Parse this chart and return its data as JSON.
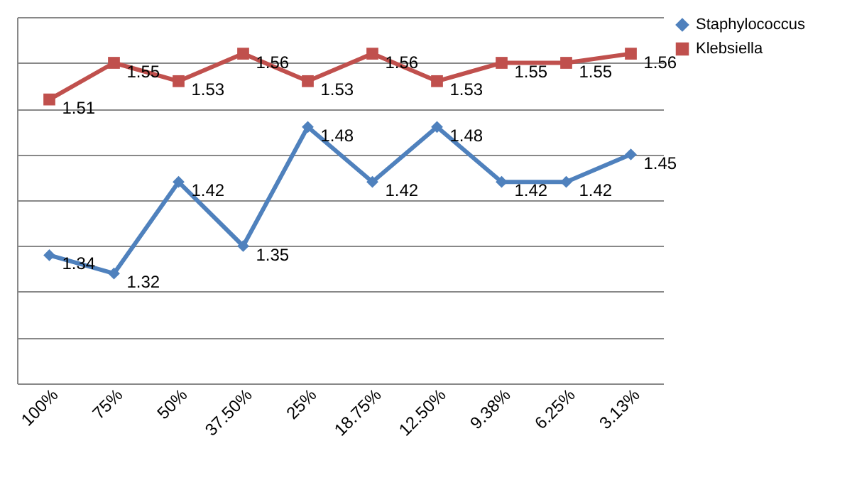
{
  "chart_data": {
    "type": "line",
    "categories": [
      "100%",
      "75%",
      "50%",
      "37.50%",
      "25%",
      "18.75%",
      "12.50%",
      "9.38%",
      "6.25%",
      "3.13%"
    ],
    "series": [
      {
        "name": "Staphylococcus",
        "color": "#4f81bd",
        "marker": "diamond",
        "values": [
          1.34,
          1.32,
          1.42,
          1.35,
          1.48,
          1.42,
          1.48,
          1.42,
          1.42,
          1.45
        ]
      },
      {
        "name": "Klebsiella",
        "color": "#c0504d",
        "marker": "square",
        "values": [
          1.51,
          1.55,
          1.53,
          1.56,
          1.53,
          1.56,
          1.53,
          1.55,
          1.55,
          1.56
        ]
      }
    ],
    "ylim": [
      1.2,
      1.6
    ],
    "tick_labels": "x",
    "grid": "y",
    "legend": "right",
    "data_labels": true
  }
}
